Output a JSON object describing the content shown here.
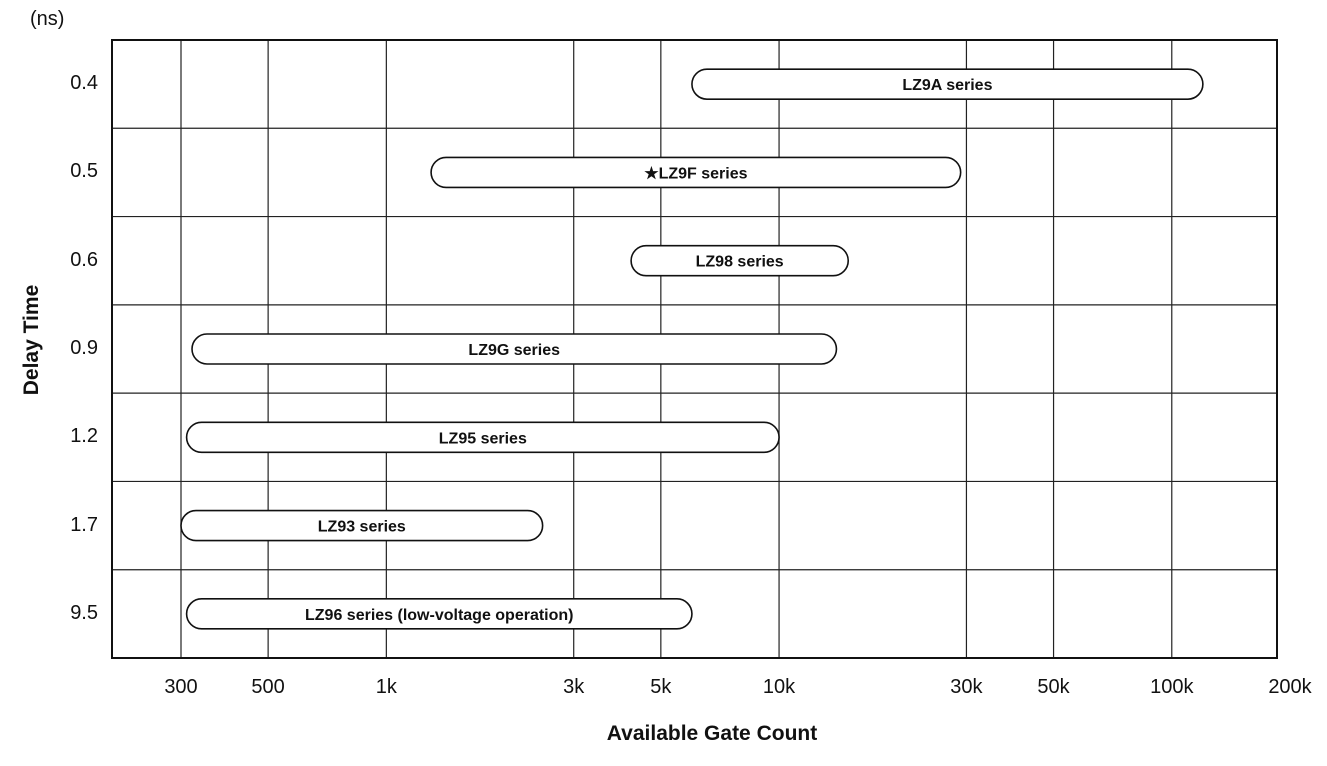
{
  "chart_data": {
    "type": "range-bar",
    "y_unit": "(ns)",
    "ylabel": "Delay Time",
    "xlabel": "Available Gate Count",
    "x_scale": "log",
    "xlim": [
      200,
      200000
    ],
    "x_ticks": [
      {
        "value": 300,
        "label": "300"
      },
      {
        "value": 500,
        "label": "500"
      },
      {
        "value": 1000,
        "label": "1k"
      },
      {
        "value": 3000,
        "label": "3k"
      },
      {
        "value": 5000,
        "label": "5k"
      },
      {
        "value": 10000,
        "label": "10k"
      },
      {
        "value": 30000,
        "label": "30k"
      },
      {
        "value": 50000,
        "label": "50k"
      },
      {
        "value": 100000,
        "label": "100k"
      },
      {
        "value": 200000,
        "label": "200k"
      }
    ],
    "categories": [
      "0.4",
      "0.5",
      "0.6",
      "0.9",
      "1.2",
      "1.7",
      "9.5"
    ],
    "bars": [
      {
        "category": "0.4",
        "label": "LZ9A series",
        "x_start": 6000,
        "x_end": 120000
      },
      {
        "category": "0.5",
        "label": "★LZ9F series",
        "x_start": 1300,
        "x_end": 29000
      },
      {
        "category": "0.6",
        "label": "LZ98 series",
        "x_start": 4200,
        "x_end": 15000
      },
      {
        "category": "0.9",
        "label": "LZ9G series",
        "x_start": 320,
        "x_end": 14000
      },
      {
        "category": "1.2",
        "label": "LZ95 series",
        "x_start": 310,
        "x_end": 10000
      },
      {
        "category": "1.7",
        "label": "LZ93 series",
        "x_start": 300,
        "x_end": 2500
      },
      {
        "category": "9.5",
        "label": "LZ96 series (low-voltage operation)",
        "x_start": 310,
        "x_end": 6000
      }
    ],
    "grid": true,
    "legend": "none"
  }
}
